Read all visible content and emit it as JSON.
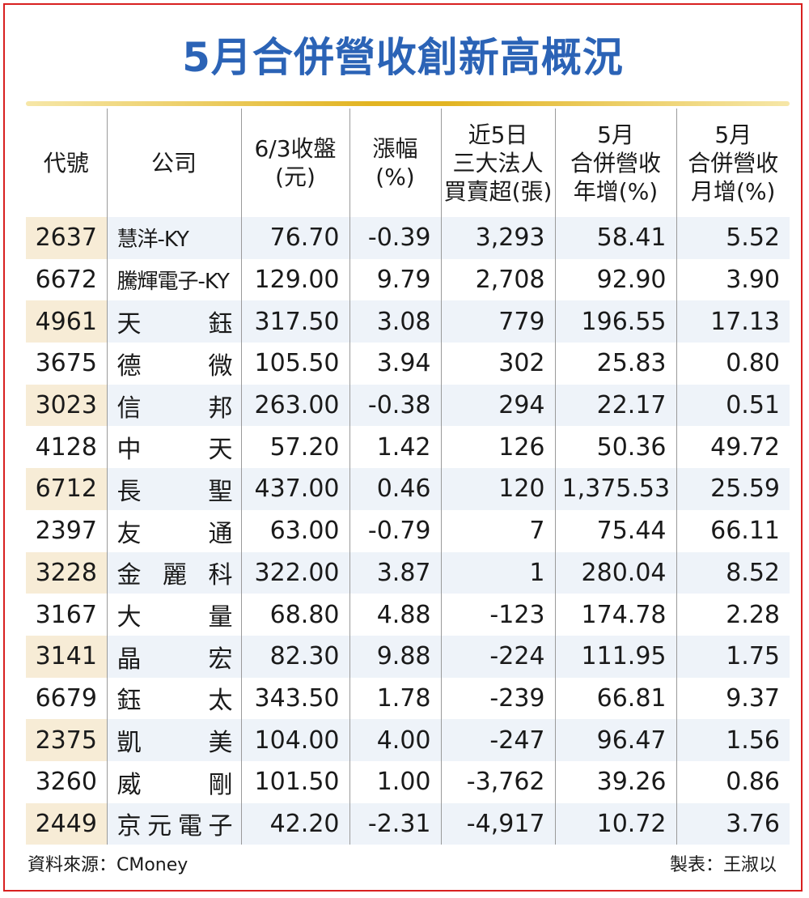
{
  "title": "5月合併營收創新高概況",
  "columns": [
    "代號",
    "公司",
    "6/3收盤\n(元)",
    "漲幅\n(%)",
    "近5日\n三大法人\n買賣超(張)",
    "5月\n合併營收\n年增(%)",
    "5月\n合併營收\n月增(%)"
  ],
  "rows": [
    {
      "code": "2637",
      "company": "慧洋-KY",
      "close": "76.70",
      "change": "-0.39",
      "net": "3,293",
      "yoy": "58.41",
      "mom": "5.52"
    },
    {
      "code": "6672",
      "company": "騰輝電子-KY",
      "close": "129.00",
      "change": "9.79",
      "net": "2,708",
      "yoy": "92.90",
      "mom": "3.90"
    },
    {
      "code": "4961",
      "company": "天鈺",
      "close": "317.50",
      "change": "3.08",
      "net": "779",
      "yoy": "196.55",
      "mom": "17.13"
    },
    {
      "code": "3675",
      "company": "德微",
      "close": "105.50",
      "change": "3.94",
      "net": "302",
      "yoy": "25.83",
      "mom": "0.80"
    },
    {
      "code": "3023",
      "company": "信邦",
      "close": "263.00",
      "change": "-0.38",
      "net": "294",
      "yoy": "22.17",
      "mom": "0.51"
    },
    {
      "code": "4128",
      "company": "中天",
      "close": "57.20",
      "change": "1.42",
      "net": "126",
      "yoy": "50.36",
      "mom": "49.72"
    },
    {
      "code": "6712",
      "company": "長聖",
      "close": "437.00",
      "change": "0.46",
      "net": "120",
      "yoy": "1,375.53",
      "mom": "25.59"
    },
    {
      "code": "2397",
      "company": "友通",
      "close": "63.00",
      "change": "-0.79",
      "net": "7",
      "yoy": "75.44",
      "mom": "66.11"
    },
    {
      "code": "3228",
      "company": "金麗科",
      "close": "322.00",
      "change": "3.87",
      "net": "1",
      "yoy": "280.04",
      "mom": "8.52"
    },
    {
      "code": "3167",
      "company": "大量",
      "close": "68.80",
      "change": "4.88",
      "net": "-123",
      "yoy": "174.78",
      "mom": "2.28"
    },
    {
      "code": "3141",
      "company": "晶宏",
      "close": "82.30",
      "change": "9.88",
      "net": "-224",
      "yoy": "111.95",
      "mom": "1.75"
    },
    {
      "code": "6679",
      "company": "鈺太",
      "close": "343.50",
      "change": "1.78",
      "net": "-239",
      "yoy": "66.81",
      "mom": "9.37"
    },
    {
      "code": "2375",
      "company": "凱美",
      "close": "104.00",
      "change": "4.00",
      "net": "-247",
      "yoy": "96.47",
      "mom": "1.56"
    },
    {
      "code": "3260",
      "company": "威剛",
      "close": "101.50",
      "change": "1.00",
      "net": "-3,762",
      "yoy": "39.26",
      "mom": "0.86"
    },
    {
      "code": "2449",
      "company": "京元電子",
      "close": "42.20",
      "change": "-2.31",
      "net": "-4,917",
      "yoy": "10.72",
      "mom": "3.76"
    }
  ],
  "footer": {
    "source": "資料來源：CMoney",
    "author": "製表：王淑以"
  },
  "colors": {
    "title": "#2b63b6",
    "border": "#d82020",
    "rule": "#e2b422",
    "code_highlight": "#f7ecd6",
    "row_highlight": "#eef3f9"
  }
}
